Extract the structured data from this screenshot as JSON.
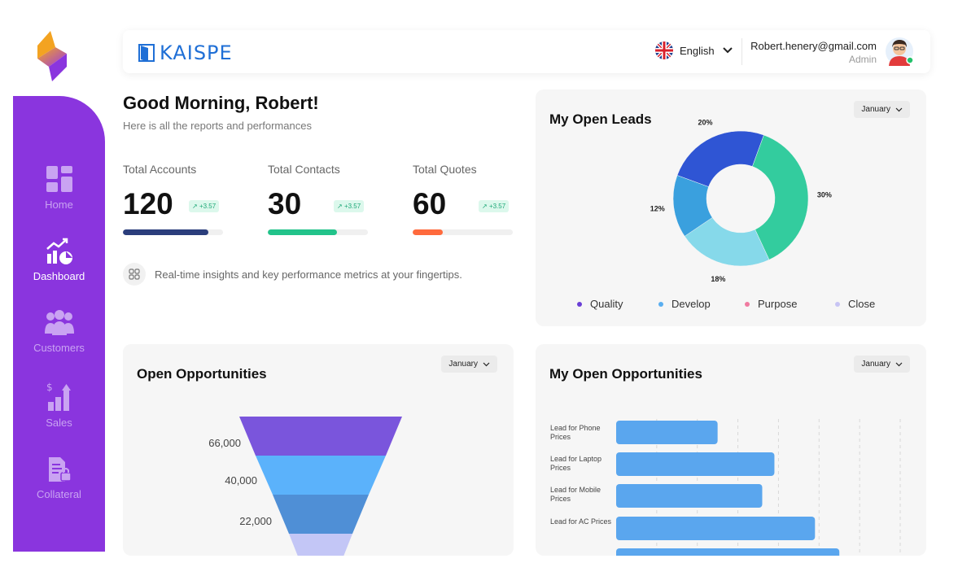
{
  "header": {
    "brand": "KAISPE",
    "language": "English",
    "user_email": "Robert.henery@gmail.com",
    "user_role": "Admin"
  },
  "sidebar": {
    "items": [
      {
        "label": "Home",
        "icon": "home-grid-icon",
        "active": false
      },
      {
        "label": "Dashboard",
        "icon": "dashboard-chart-icon",
        "active": true
      },
      {
        "label": "Customers",
        "icon": "customers-group-icon",
        "active": false
      },
      {
        "label": "Sales",
        "icon": "sales-bar-icon",
        "active": false
      },
      {
        "label": "Collateral",
        "icon": "collateral-doc-icon",
        "active": false
      }
    ]
  },
  "greeting": {
    "title": "Good Morning, Robert!",
    "subtitle": "Here is all the reports and performances"
  },
  "stats": [
    {
      "label": "Total Accounts",
      "value": "120",
      "badge": "+3.57",
      "progress": 0.85,
      "color": "#2b3e7c"
    },
    {
      "label": "Total Contacts",
      "value": "30",
      "badge": "+3.57",
      "progress": 0.69,
      "color": "#22c38a"
    },
    {
      "label": "Total Quotes",
      "value": "60",
      "badge": "+3.57",
      "progress": 0.3,
      "color": "#ff6a3d"
    }
  ],
  "insight": "Real-time insights and key performance metrics at your fingertips.",
  "cards": {
    "open_leads": {
      "title": "My Open Leads",
      "month": "January"
    },
    "open_opps": {
      "title": "Open Opportunities",
      "month": "January"
    },
    "my_open_opps": {
      "title": "My Open Opportunities",
      "month": "January"
    }
  },
  "chart_data": [
    {
      "type": "pie",
      "title": "My Open Leads",
      "slices": [
        {
          "label": "20%",
          "value": 20,
          "color": "#2f55d4"
        },
        {
          "label": "30%",
          "value": 30,
          "color": "#33cc9e"
        },
        {
          "label": "18%",
          "value": 18,
          "color": "#86d9ea"
        },
        {
          "label": "12%",
          "value": 12,
          "color": "#3aa0de"
        }
      ],
      "legend": [
        {
          "name": "Quality",
          "color": "#6a3fd6"
        },
        {
          "name": "Develop",
          "color": "#5aaef0"
        },
        {
          "name": "Purpose",
          "color": "#f07aa0"
        },
        {
          "name": "Close",
          "color": "#c7c4f4"
        }
      ]
    },
    {
      "type": "bar",
      "title": "Open Opportunities",
      "orientation": "funnel",
      "categories": [
        "66,000",
        "40,000",
        "22,000",
        ""
      ],
      "values": [
        66000,
        40000,
        22000,
        10000
      ],
      "colors": [
        "#7a55dc",
        "#5bb2fb",
        "#4f8fd6",
        "#c3c6f6"
      ]
    },
    {
      "type": "bar",
      "title": "My Open Opportunities",
      "orientation": "horizontal",
      "categories": [
        "Lead for Phone Prices",
        "Lead for Laptop Prices",
        "Lead for Mobile Prices",
        "Lead for AC Prices"
      ],
      "values": [
        25,
        39,
        36,
        49
      ],
      "xlim": [
        0,
        70
      ],
      "color": "#5aa6ee"
    }
  ]
}
